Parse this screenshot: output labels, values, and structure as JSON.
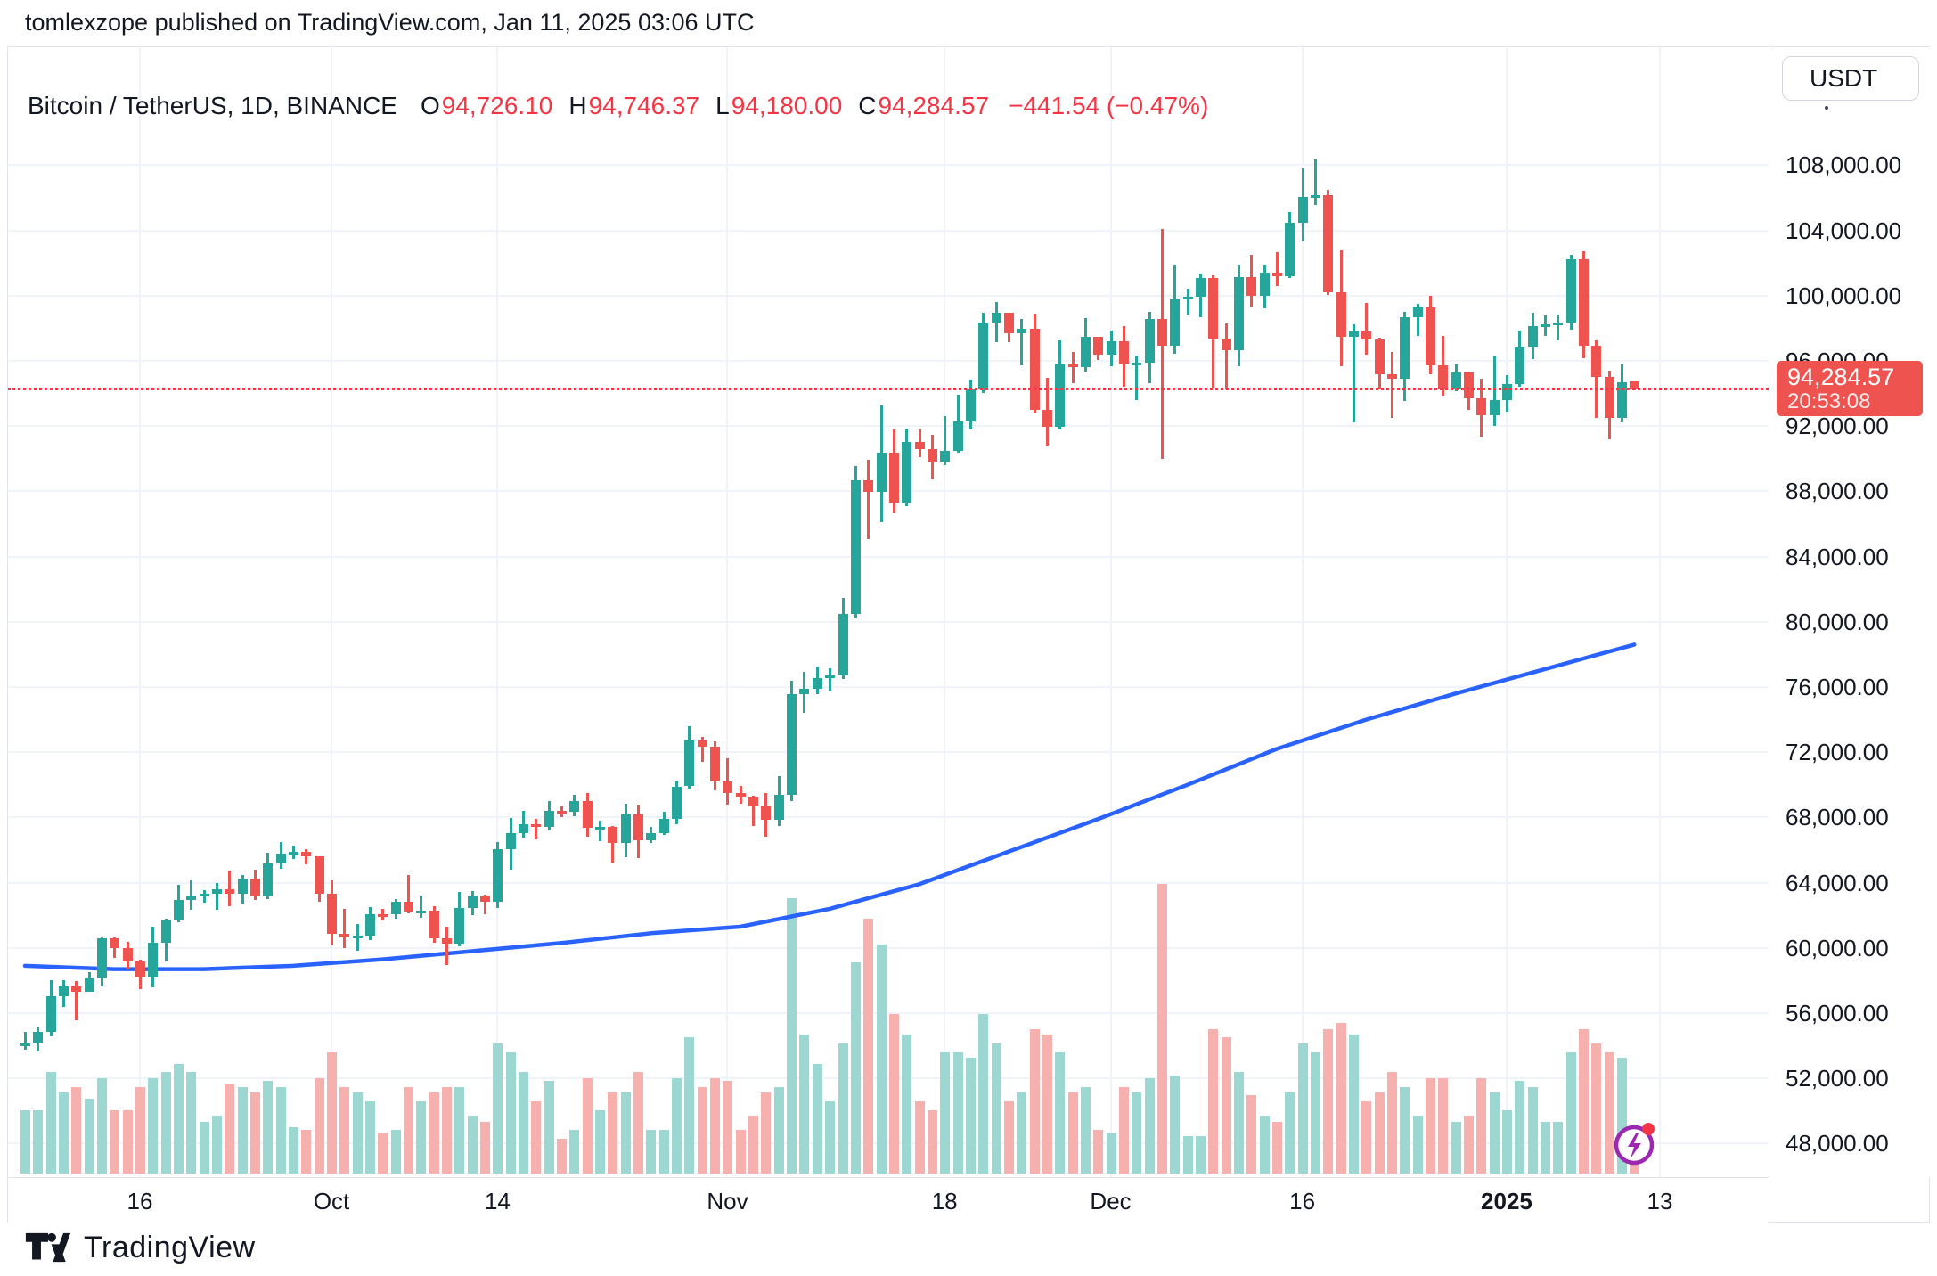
{
  "published_line": "tomlexzope published on TradingView.com, Jan 11, 2025 03:06 UTC",
  "legend": {
    "title": "Bitcoin / TetherUS, 1D, BINANCE",
    "o_label": "O",
    "o": "94,726.10",
    "h_label": "H",
    "h": "94,746.37",
    "l_label": "L",
    "l": "94,180.00",
    "c_label": "C",
    "c": "94,284.57",
    "change": "−441.54 (−0.47%)"
  },
  "price_scale": {
    "currency_badge": "USDT",
    "labels": [
      "108,000.00",
      "104,000.00",
      "100,000.00",
      "96,000.00",
      "92,000.00",
      "88,000.00",
      "84,000.00",
      "80,000.00",
      "76,000.00",
      "72,000.00",
      "68,000.00",
      "64,000.00",
      "60,000.00",
      "56,000.00",
      "52,000.00",
      "48,000.00"
    ],
    "last_price_label": "94,284.57",
    "countdown": "20:53:08"
  },
  "time_scale": {
    "labels": [
      {
        "text": "16",
        "day_index": 9,
        "bold": false
      },
      {
        "text": "Oct",
        "day_index": 24,
        "bold": false
      },
      {
        "text": "14",
        "day_index": 37,
        "bold": false
      },
      {
        "text": "Nov",
        "day_index": 55,
        "bold": false
      },
      {
        "text": "18",
        "day_index": 72,
        "bold": false
      },
      {
        "text": "Dec",
        "day_index": 85,
        "bold": false
      },
      {
        "text": "16",
        "day_index": 100,
        "bold": false
      },
      {
        "text": "2025",
        "day_index": 116,
        "bold": true
      },
      {
        "text": "13",
        "day_index": 128,
        "bold": false
      }
    ]
  },
  "footer": {
    "brand": "TradingView"
  },
  "colors": {
    "up": "#26a69a",
    "down": "#ef5350",
    "vol_up": "#9dd7d2",
    "vol_down": "#f6b1ae",
    "ma": "#2962ff",
    "grid": "#f0f3fa",
    "border": "#e0e3eb",
    "text": "#131722",
    "price_line": "#f23645",
    "label_bg": "#ef5350",
    "flash_purple": "#9c27b0",
    "flash_dot": "#f23645"
  },
  "chart_data": {
    "type": "candlestick",
    "title": "Bitcoin / TetherUS, 1D, BINANCE",
    "symbol": "BTC/USDT",
    "interval": "1D",
    "exchange": "BINANCE",
    "start_date": "2024-09-07",
    "end_date": "2025-01-11",
    "ylim": [
      46000,
      115000
    ],
    "y_ticks": [
      108000,
      104000,
      100000,
      96000,
      92000,
      88000,
      84000,
      80000,
      76000,
      72000,
      68000,
      64000,
      60000,
      56000,
      52000,
      48000
    ],
    "grid": true,
    "price_line_value": 94284.57,
    "last_close": 94284.57,
    "change": -441.54,
    "change_pct": -0.47,
    "countdown": "20:53:08",
    "volume_units": "relative fraction of max daily volume (no axis shown)",
    "candles_format": [
      "date",
      "open",
      "high",
      "low",
      "close",
      "volume_rel"
    ],
    "candles": [
      [
        "2024-09-07",
        54139,
        54849,
        53745,
        54157,
        0.22
      ],
      [
        "2024-09-08",
        54157,
        55100,
        53629,
        54841,
        0.22
      ],
      [
        "2024-09-09",
        54841,
        58041,
        54591,
        57042,
        0.35
      ],
      [
        "2024-09-10",
        57042,
        58044,
        56381,
        57635,
        0.28
      ],
      [
        "2024-09-11",
        57635,
        57980,
        55549,
        57338,
        0.3
      ],
      [
        "2024-09-12",
        57338,
        58534,
        57324,
        58132,
        0.26
      ],
      [
        "2024-09-13",
        58132,
        60625,
        57632,
        60571,
        0.33
      ],
      [
        "2024-09-14",
        60571,
        60656,
        59400,
        60005,
        0.22
      ],
      [
        "2024-09-15",
        60005,
        60363,
        58691,
        59182,
        0.22
      ],
      [
        "2024-09-16",
        59182,
        59253,
        57493,
        58213,
        0.3
      ],
      [
        "2024-09-17",
        58213,
        61320,
        57610,
        60313,
        0.33
      ],
      [
        "2024-09-18",
        60313,
        61786,
        59174,
        61759,
        0.35
      ],
      [
        "2024-09-19",
        61759,
        63852,
        61555,
        62947,
        0.38
      ],
      [
        "2024-09-20",
        62947,
        64133,
        62350,
        63201,
        0.35
      ],
      [
        "2024-09-21",
        63201,
        63559,
        62758,
        63349,
        0.18
      ],
      [
        "2024-09-22",
        63349,
        64000,
        62357,
        63578,
        0.2
      ],
      [
        "2024-09-23",
        63578,
        64745,
        62538,
        63339,
        0.31
      ],
      [
        "2024-09-24",
        63339,
        64487,
        62700,
        64262,
        0.3
      ],
      [
        "2024-09-25",
        64262,
        64820,
        62962,
        63150,
        0.28
      ],
      [
        "2024-09-26",
        63150,
        65839,
        62983,
        65173,
        0.32
      ],
      [
        "2024-09-27",
        65173,
        66498,
        64855,
        65790,
        0.3
      ],
      [
        "2024-09-28",
        65790,
        66260,
        65450,
        65887,
        0.16
      ],
      [
        "2024-09-29",
        65887,
        66075,
        65110,
        65602,
        0.15
      ],
      [
        "2024-09-30",
        65602,
        65618,
        62856,
        63327,
        0.33
      ],
      [
        "2024-10-01",
        63327,
        64129,
        60164,
        60837,
        0.42
      ],
      [
        "2024-10-02",
        60837,
        62375,
        60000,
        60653,
        0.3
      ],
      [
        "2024-10-03",
        60653,
        61470,
        59828,
        60752,
        0.28
      ],
      [
        "2024-10-04",
        60752,
        62485,
        60459,
        62082,
        0.25
      ],
      [
        "2024-10-05",
        62082,
        62370,
        61678,
        62057,
        0.14
      ],
      [
        "2024-10-06",
        62057,
        62972,
        61803,
        62819,
        0.15
      ],
      [
        "2024-10-07",
        62819,
        64478,
        62128,
        62236,
        0.3
      ],
      [
        "2024-10-08",
        62236,
        63207,
        61860,
        62282,
        0.25
      ],
      [
        "2024-10-09",
        62282,
        62558,
        60315,
        60582,
        0.28
      ],
      [
        "2024-10-10",
        60582,
        61312,
        58946,
        60274,
        0.3
      ],
      [
        "2024-10-11",
        60274,
        63412,
        60087,
        62445,
        0.3
      ],
      [
        "2024-10-12",
        62445,
        63465,
        62011,
        63193,
        0.2
      ],
      [
        "2024-10-13",
        63193,
        63287,
        62050,
        62851,
        0.18
      ],
      [
        "2024-10-14",
        62851,
        66500,
        62457,
        66046,
        0.45
      ],
      [
        "2024-10-15",
        66046,
        67945,
        64800,
        67041,
        0.42
      ],
      [
        "2024-10-16",
        67041,
        68424,
        66750,
        67612,
        0.35
      ],
      [
        "2024-10-17",
        67612,
        67939,
        66666,
        67399,
        0.25
      ],
      [
        "2024-10-18",
        67399,
        68997,
        67192,
        68418,
        0.32
      ],
      [
        "2024-10-19",
        68418,
        68693,
        68010,
        68362,
        0.12
      ],
      [
        "2024-10-20",
        68362,
        69400,
        68100,
        69001,
        0.15
      ],
      [
        "2024-10-21",
        69001,
        69519,
        66824,
        67353,
        0.33
      ],
      [
        "2024-10-22",
        67353,
        67818,
        66566,
        67411,
        0.22
      ],
      [
        "2024-10-23",
        67411,
        67472,
        65260,
        66432,
        0.28
      ],
      [
        "2024-10-24",
        66432,
        68850,
        65590,
        68166,
        0.28
      ],
      [
        "2024-10-25",
        68166,
        68794,
        65512,
        66602,
        0.35
      ],
      [
        "2024-10-26",
        66602,
        67434,
        66410,
        67013,
        0.15
      ],
      [
        "2024-10-27",
        67013,
        68325,
        66907,
        67929,
        0.15
      ],
      [
        "2024-10-28",
        67929,
        70283,
        67577,
        69907,
        0.33
      ],
      [
        "2024-10-29",
        69907,
        73620,
        69730,
        72715,
        0.47
      ],
      [
        "2024-10-30",
        72715,
        72959,
        71411,
        72339,
        0.3
      ],
      [
        "2024-10-31",
        72339,
        72668,
        69686,
        70215,
        0.33
      ],
      [
        "2024-11-01",
        70215,
        71632,
        68772,
        69482,
        0.32
      ],
      [
        "2024-11-02",
        69482,
        69914,
        68820,
        69289,
        0.15
      ],
      [
        "2024-11-03",
        69289,
        69360,
        67478,
        68741,
        0.2
      ],
      [
        "2024-11-04",
        68741,
        69500,
        66835,
        67850,
        0.28
      ],
      [
        "2024-11-05",
        67850,
        70550,
        67478,
        69372,
        0.3
      ],
      [
        "2024-11-06",
        69372,
        76400,
        69000,
        75571,
        0.95
      ],
      [
        "2024-11-07",
        75571,
        76937,
        74436,
        75904,
        0.48
      ],
      [
        "2024-11-08",
        75904,
        77240,
        75566,
        76562,
        0.38
      ],
      [
        "2024-11-09",
        76562,
        77133,
        75714,
        76700,
        0.25
      ],
      [
        "2024-11-10",
        76700,
        81474,
        76492,
        80474,
        0.45
      ],
      [
        "2024-11-11",
        80474,
        89530,
        80242,
        88703,
        0.73
      ],
      [
        "2024-11-12",
        88703,
        89940,
        85072,
        87955,
        0.88
      ],
      [
        "2024-11-13",
        87955,
        93250,
        86128,
        90375,
        0.79
      ],
      [
        "2024-11-14",
        90375,
        91790,
        86668,
        87294,
        0.55
      ],
      [
        "2024-11-15",
        87294,
        91849,
        87072,
        91032,
        0.48
      ],
      [
        "2024-11-16",
        91032,
        91775,
        90072,
        90586,
        0.25
      ],
      [
        "2024-11-17",
        90586,
        91449,
        88722,
        89845,
        0.22
      ],
      [
        "2024-11-18",
        89845,
        92594,
        89600,
        90464,
        0.42
      ],
      [
        "2024-11-19",
        90464,
        93905,
        90368,
        92310,
        0.42
      ],
      [
        "2024-11-20",
        92310,
        94831,
        91777,
        94286,
        0.4
      ],
      [
        "2024-11-21",
        94286,
        98950,
        94040,
        98331,
        0.55
      ],
      [
        "2024-11-22",
        98331,
        99588,
        97121,
        98928,
        0.45
      ],
      [
        "2024-11-23",
        98928,
        98928,
        97137,
        97700,
        0.25
      ],
      [
        "2024-11-24",
        97700,
        98564,
        95734,
        97944,
        0.28
      ],
      [
        "2024-11-25",
        97944,
        98871,
        92800,
        93010,
        0.5
      ],
      [
        "2024-11-26",
        93010,
        94987,
        90791,
        91965,
        0.48
      ],
      [
        "2024-11-27",
        91965,
        97266,
        91792,
        95863,
        0.42
      ],
      [
        "2024-11-28",
        95863,
        96540,
        94648,
        95643,
        0.28
      ],
      [
        "2024-11-29",
        95643,
        98618,
        95364,
        97461,
        0.3
      ],
      [
        "2024-11-30",
        97461,
        97463,
        96080,
        96407,
        0.15
      ],
      [
        "2024-12-01",
        96407,
        97834,
        95696,
        97185,
        0.14
      ],
      [
        "2024-12-02",
        97185,
        98130,
        94395,
        95840,
        0.3
      ],
      [
        "2024-12-03",
        95840,
        96305,
        93578,
        95898,
        0.28
      ],
      [
        "2024-12-04",
        95898,
        99000,
        94618,
        98587,
        0.33
      ],
      [
        "2024-12-05",
        98587,
        104088,
        90000,
        96945,
        1.0
      ],
      [
        "2024-12-06",
        96945,
        101910,
        96442,
        99831,
        0.34
      ],
      [
        "2024-12-07",
        99831,
        100439,
        98844,
        99923,
        0.13
      ],
      [
        "2024-12-08",
        99923,
        101351,
        98657,
        101109,
        0.13
      ],
      [
        "2024-12-09",
        101109,
        101236,
        94340,
        97339,
        0.5
      ],
      [
        "2024-12-10",
        97339,
        98270,
        94258,
        96648,
        0.47
      ],
      [
        "2024-12-11",
        96648,
        101888,
        95689,
        101126,
        0.35
      ],
      [
        "2024-12-12",
        101126,
        102495,
        99325,
        100004,
        0.27
      ],
      [
        "2024-12-13",
        100004,
        101895,
        99205,
        101424,
        0.2
      ],
      [
        "2024-12-14",
        101424,
        102650,
        100609,
        101217,
        0.18
      ],
      [
        "2024-12-15",
        101217,
        105120,
        101066,
        104463,
        0.28
      ],
      [
        "2024-12-16",
        104463,
        107793,
        103333,
        106058,
        0.45
      ],
      [
        "2024-12-17",
        106058,
        108364,
        105555,
        106140,
        0.42
      ],
      [
        "2024-12-18",
        106140,
        106477,
        100050,
        100197,
        0.5
      ],
      [
        "2024-12-19",
        100197,
        102800,
        95672,
        97470,
        0.52
      ],
      [
        "2024-12-20",
        97470,
        98233,
        92232,
        97805,
        0.48
      ],
      [
        "2024-12-21",
        97805,
        99540,
        96407,
        97291,
        0.25
      ],
      [
        "2024-12-22",
        97291,
        97394,
        94250,
        95186,
        0.28
      ],
      [
        "2024-12-23",
        95186,
        96538,
        92520,
        94881,
        0.35
      ],
      [
        "2024-12-24",
        94881,
        99000,
        93517,
        98676,
        0.3
      ],
      [
        "2024-12-25",
        98676,
        99480,
        97536,
        99277,
        0.2
      ],
      [
        "2024-12-26",
        99277,
        99963,
        95157,
        95734,
        0.33
      ],
      [
        "2024-12-27",
        95734,
        97554,
        93845,
        94298,
        0.33
      ],
      [
        "2024-12-28",
        94298,
        95836,
        94137,
        95301,
        0.18
      ],
      [
        "2024-12-29",
        95301,
        95340,
        92996,
        93706,
        0.2
      ],
      [
        "2024-12-30",
        93706,
        94919,
        91332,
        92643,
        0.33
      ],
      [
        "2024-12-31",
        92643,
        96250,
        92022,
        93576,
        0.28
      ],
      [
        "2025-01-01",
        93576,
        95151,
        92883,
        94580,
        0.22
      ],
      [
        "2025-01-02",
        94580,
        97839,
        94392,
        96886,
        0.32
      ],
      [
        "2025-01-03",
        96886,
        98976,
        96100,
        98131,
        0.3
      ],
      [
        "2025-01-04",
        98131,
        98778,
        97514,
        98220,
        0.18
      ],
      [
        "2025-01-05",
        98220,
        98836,
        97276,
        98363,
        0.18
      ],
      [
        "2025-01-06",
        98363,
        102480,
        97900,
        102235,
        0.42
      ],
      [
        "2025-01-07",
        102235,
        102724,
        96181,
        96924,
        0.5
      ],
      [
        "2025-01-08",
        96924,
        97268,
        92500,
        95043,
        0.45
      ],
      [
        "2025-01-09",
        95043,
        95382,
        91203,
        92484,
        0.42
      ],
      [
        "2025-01-10",
        92484,
        95836,
        92206,
        94701,
        0.4
      ],
      [
        "2025-01-11",
        94726.1,
        94746.37,
        94180.0,
        94284.57,
        0.1
      ]
    ],
    "ma_line": {
      "name": "moving-average",
      "color": "#2962ff",
      "points": [
        [
          "2024-09-07",
          58900
        ],
        [
          "2024-09-14",
          58700
        ],
        [
          "2024-09-21",
          58700
        ],
        [
          "2024-09-28",
          58900
        ],
        [
          "2024-10-05",
          59300
        ],
        [
          "2024-10-12",
          59800
        ],
        [
          "2024-10-19",
          60300
        ],
        [
          "2024-10-26",
          60900
        ],
        [
          "2024-11-02",
          61300
        ],
        [
          "2024-11-09",
          62400
        ],
        [
          "2024-11-16",
          63900
        ],
        [
          "2024-11-23",
          65900
        ],
        [
          "2024-11-30",
          67900
        ],
        [
          "2024-12-07",
          70000
        ],
        [
          "2024-12-14",
          72200
        ],
        [
          "2024-12-21",
          74000
        ],
        [
          "2024-12-28",
          75600
        ],
        [
          "2025-01-04",
          77100
        ],
        [
          "2025-01-11",
          78600
        ]
      ]
    }
  }
}
